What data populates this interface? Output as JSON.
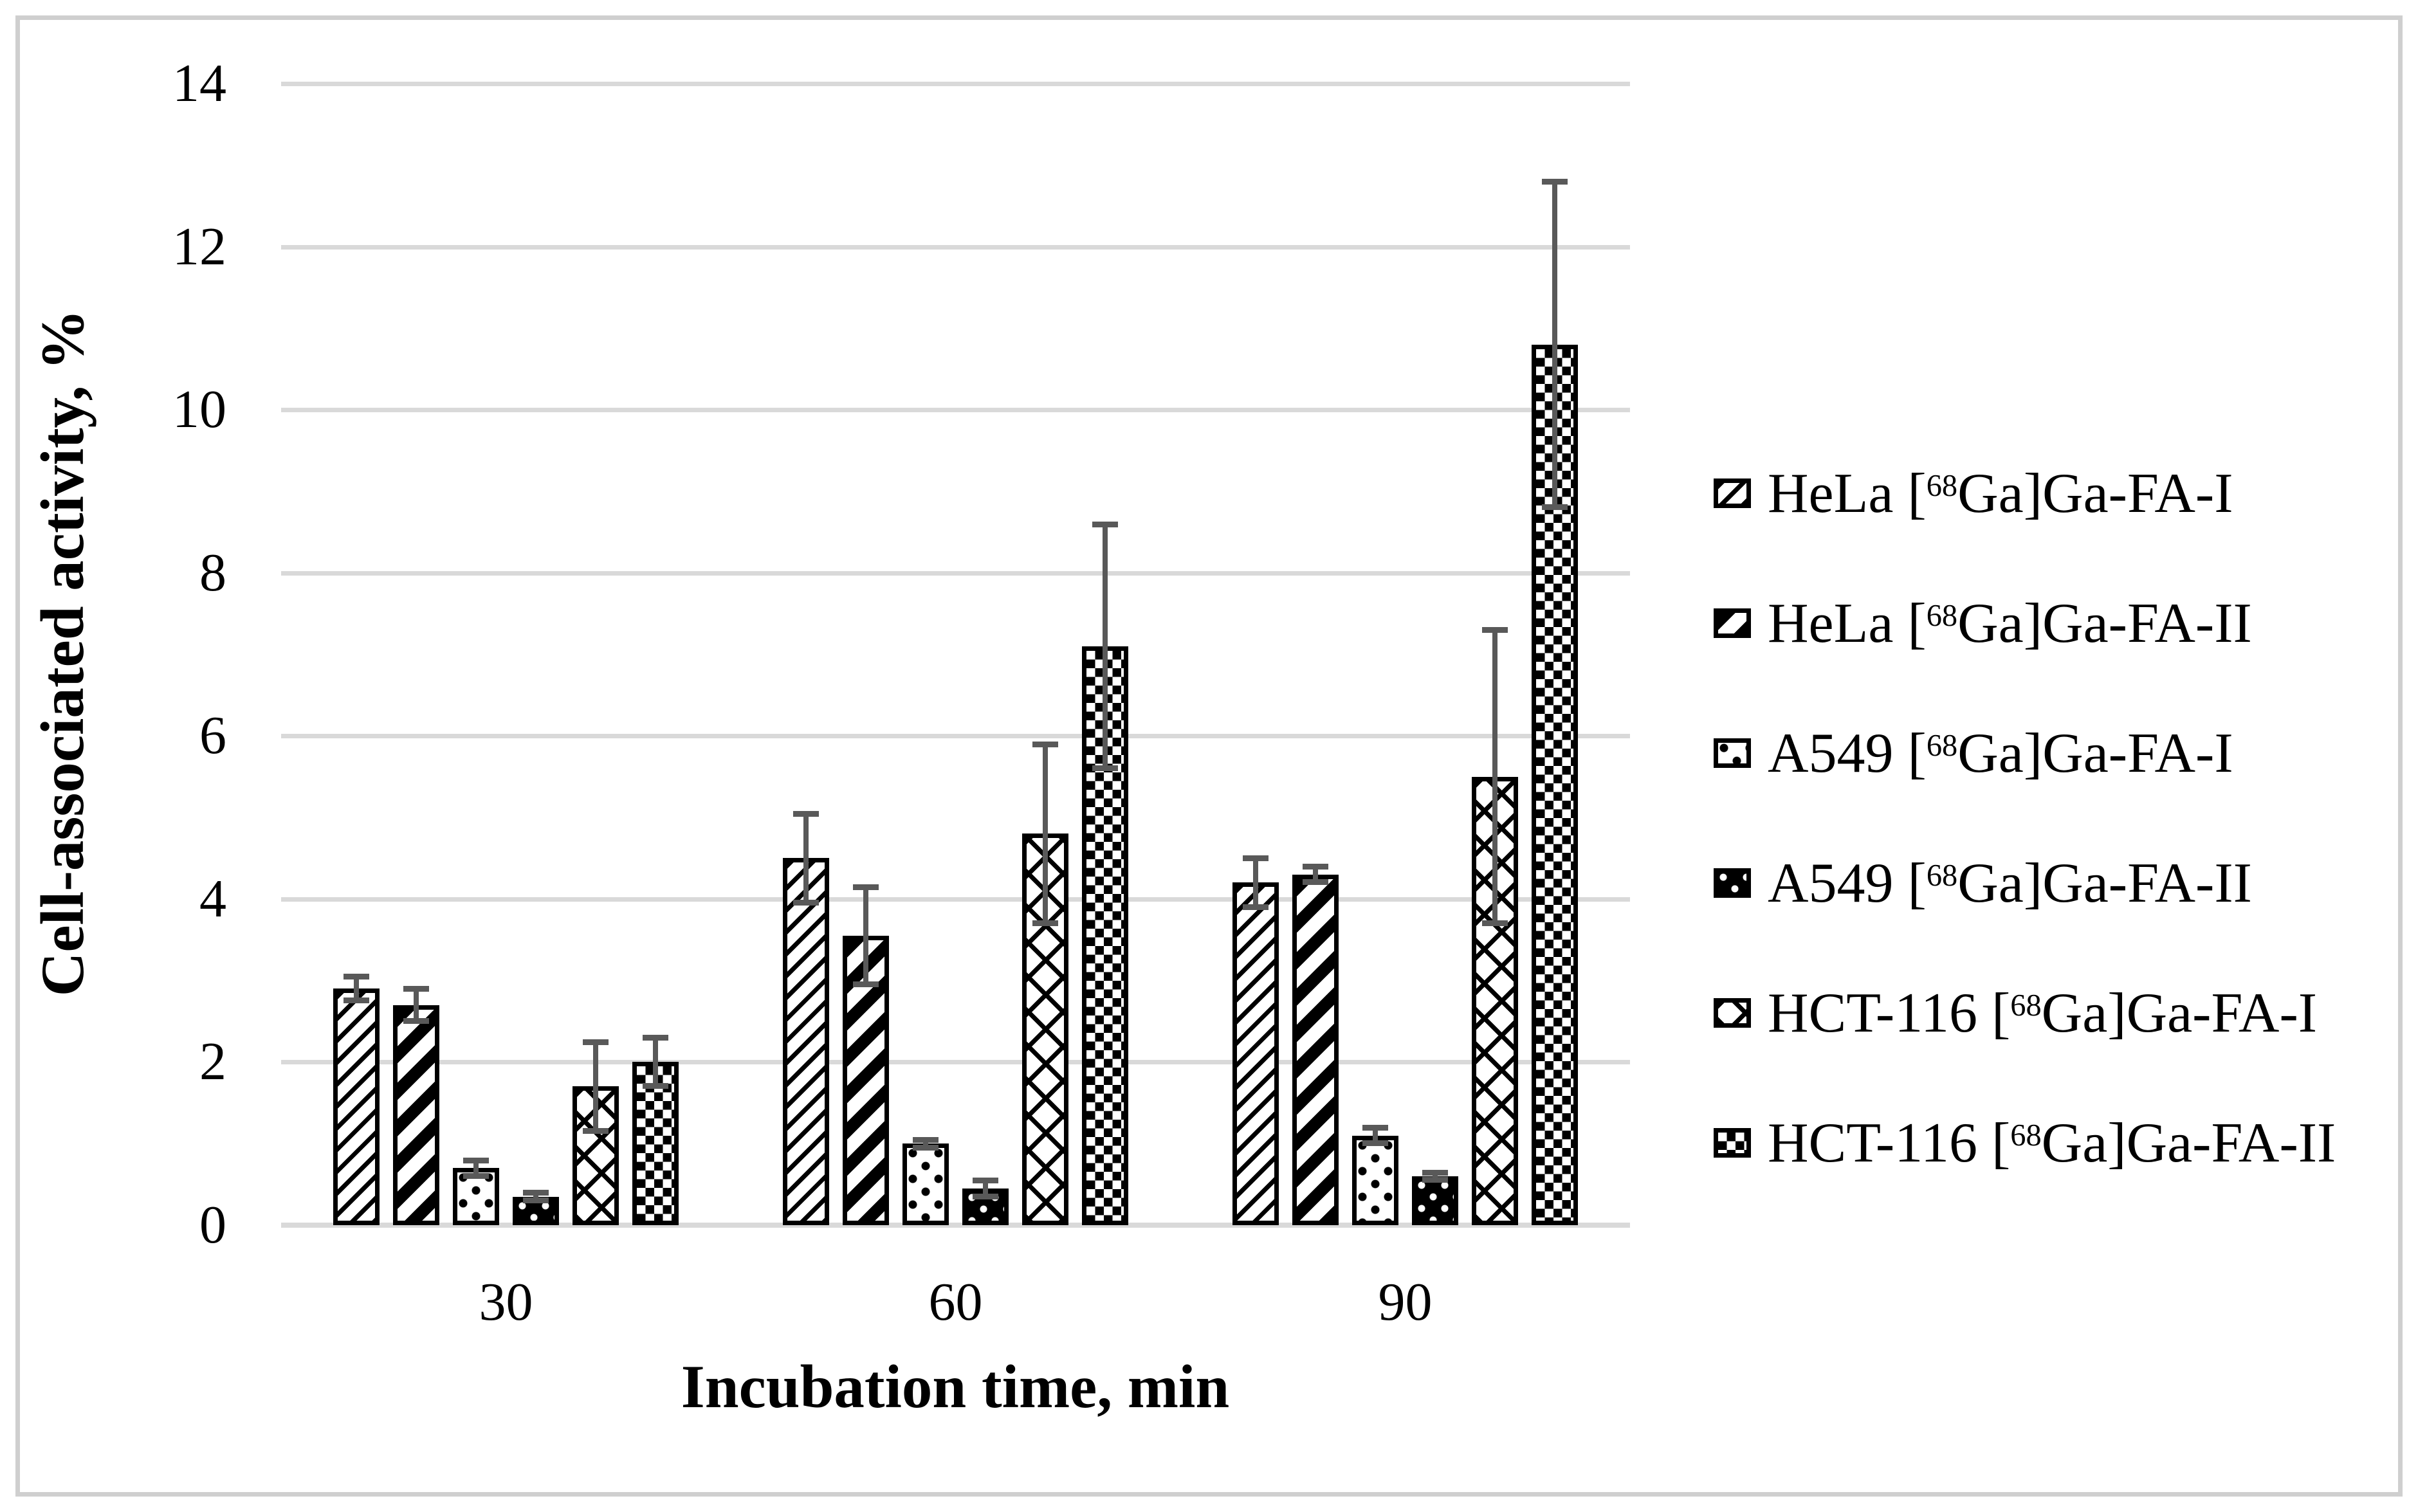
{
  "figure": {
    "kind": "grouped bar chart with error bars",
    "background": "#ffffff",
    "border_color": "#cfcfcf"
  },
  "chart_data": {
    "type": "bar",
    "title": "",
    "xlabel": "Incubation time, min",
    "ylabel": "Cell-associated activity, %",
    "categories": [
      "30",
      "60",
      "90"
    ],
    "y_ticks": [
      0,
      2,
      4,
      6,
      8,
      10,
      12,
      14
    ],
    "ylim": [
      0,
      14
    ],
    "grid": true,
    "legend_position": "right",
    "error_bars": true,
    "series": [
      {
        "name": "HeLa [68Ga]Ga-FA-I",
        "label": {
          "pre": "HeLa [",
          "sup": "68",
          "post": "Ga]Ga-FA-I"
        },
        "pattern": "light-upward-diagonal",
        "values": [
          2.9,
          4.5,
          4.2
        ],
        "errors": [
          0.15,
          0.55,
          0.3
        ]
      },
      {
        "name": "HeLa [68Ga]Ga-FA-II",
        "label": {
          "pre": "HeLa [",
          "sup": "68",
          "post": "Ga]Ga-FA-II"
        },
        "pattern": "wide-upward-diagonal",
        "values": [
          2.7,
          3.55,
          4.3
        ],
        "errors": [
          0.2,
          0.6,
          0.1
        ]
      },
      {
        "name": "A549 [68Ga]Ga-FA-I",
        "label": {
          "pre": "A549 [",
          "sup": "68",
          "post": "Ga]Ga-FA-I"
        },
        "pattern": "sparse-dots",
        "values": [
          0.7,
          1.0,
          1.1
        ],
        "errors": [
          0.1,
          0.05,
          0.1
        ]
      },
      {
        "name": "A549 [68Ga]Ga-FA-II",
        "label": {
          "pre": "A549 [",
          "sup": "68",
          "post": "Ga]Ga-FA-II"
        },
        "pattern": "dark-dots",
        "values": [
          0.35,
          0.45,
          0.6
        ],
        "errors": [
          0.05,
          0.1,
          0.05
        ]
      },
      {
        "name": "HCT-116 [68Ga]Ga-FA-I",
        "label": {
          "pre": "HCT-116 [",
          "sup": "68",
          "post": "Ga]Ga-FA-I"
        },
        "pattern": "diagonal-crosshatch",
        "values": [
          1.7,
          4.8,
          5.5
        ],
        "errors": [
          0.55,
          1.1,
          1.8
        ]
      },
      {
        "name": "HCT-116 [68Ga]Ga-FA-II",
        "label": {
          "pre": "HCT-116 [",
          "sup": "68",
          "post": "Ga]Ga-FA-II"
        },
        "pattern": "checkerboard",
        "values": [
          2.0,
          7.1,
          10.8
        ],
        "errors": [
          0.3,
          1.5,
          2.0
        ]
      }
    ],
    "colors": {
      "bar_fill": "#000000",
      "bar_outline": "#000000",
      "error_bar": "#595959",
      "gridline": "#d9d9d9",
      "axis_line": "#d9d9d9",
      "text": "#000000"
    }
  }
}
